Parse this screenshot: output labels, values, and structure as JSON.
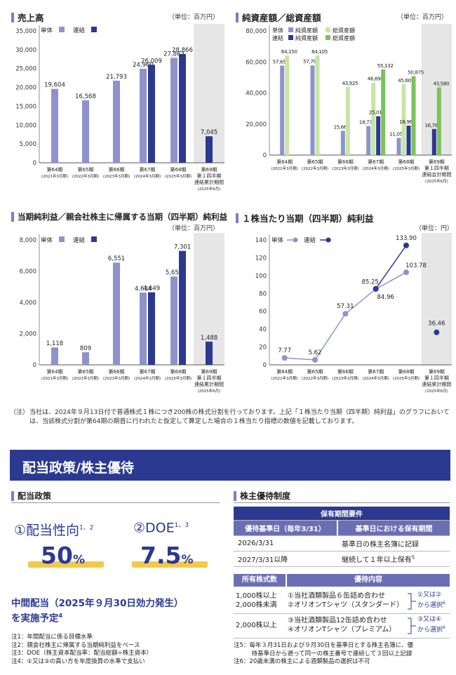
{
  "colors": {
    "single": "#8f93cc",
    "consol": "#2b3990",
    "light_green": "#c7e6a6",
    "green": "#7dc15b",
    "gray": "#e6e6e6",
    "navy": "#2b3990"
  },
  "period_labels": [
    {
      "l1": "第64期",
      "l2": "(2021年3月期)"
    },
    {
      "l1": "第65期",
      "l2": "(2022年3月期)"
    },
    {
      "l1": "第66期",
      "l2": "(2023年3月期)"
    },
    {
      "l1": "第67期",
      "l2": "(2024年3月期)"
    },
    {
      "l1": "第68期",
      "l2": "(2025年3月期)"
    }
  ],
  "period69_a": [
    "第69期",
    "第１四半期",
    "連結累計期間",
    "(2025年6月)"
  ],
  "period69_b": [
    "第69期",
    "第１四半期",
    "連結会計期間",
    "(2025年6月)"
  ],
  "chart_data": [
    {
      "type": "bar",
      "title": "売上高",
      "unit": "（単位：百万円）",
      "legend": [
        "単体",
        "連結"
      ],
      "yticks": [
        "35,000",
        "30,000",
        "25,000",
        "20,000",
        "15,000",
        "10,000",
        "5,000",
        "0"
      ],
      "ylim": [
        0,
        35000
      ],
      "series": [
        {
          "name": "単体",
          "values": [
            19604,
            16568,
            21793,
            24960,
            27863,
            null
          ],
          "labels": [
            "19,604",
            "16,568",
            "21,793",
            "24,960",
            "27,863",
            ""
          ]
        },
        {
          "name": "連結",
          "values": [
            null,
            null,
            null,
            26009,
            28866,
            7045
          ],
          "labels": [
            "",
            "",
            "",
            "26,009",
            "28,866",
            "7,045"
          ]
        }
      ]
    },
    {
      "type": "bar",
      "title": "純資産額／総資産額",
      "unit": "（単位：百万円）",
      "legend": [
        "単体",
        "純資産額",
        "総資産額",
        "連結",
        "純資産額",
        "総資産額"
      ],
      "yticks": [
        "80,000",
        "60,000",
        "40,000",
        "20,000",
        "0"
      ],
      "ylim": [
        0,
        80000
      ],
      "series": [
        {
          "name": "単体 純資産額",
          "values": [
            57659,
            57792,
            15669,
            18738,
            11050,
            null
          ],
          "labels": [
            "57,659",
            "57,792",
            "15,669",
            "18,738",
            "11,050",
            ""
          ]
        },
        {
          "name": "単体 総資産額",
          "values": [
            64150,
            64105,
            43925,
            46690,
            45609,
            null
          ],
          "labels": [
            "64,150",
            "64,105",
            "43,925",
            "46,690",
            "45,609",
            ""
          ]
        },
        {
          "name": "連結 純資産額",
          "values": [
            null,
            null,
            null,
            25013,
            18968,
            16783
          ],
          "labels": [
            "",
            "",
            "",
            "25,013",
            "18,968",
            "16,783"
          ]
        },
        {
          "name": "連結 総資産額",
          "values": [
            null,
            null,
            null,
            55132,
            50875,
            43580
          ],
          "labels": [
            "",
            "",
            "",
            "55,132",
            "50,875",
            "43,580"
          ]
        }
      ]
    },
    {
      "type": "bar",
      "title": "当期純利益／親会社株主に帰属する当期（四半期）純利益",
      "unit": "（単位：百万円）",
      "legend": [
        "単体",
        "連結"
      ],
      "yticks": [
        "8,000",
        "6,000",
        "4,000",
        "2,000",
        "0"
      ],
      "ylim": [
        0,
        8000
      ],
      "series": [
        {
          "name": "単体",
          "values": [
            1118,
            809,
            6551,
            4634,
            5658,
            null
          ],
          "labels": [
            "1,118",
            "809",
            "6,551",
            "4,634",
            "5,658",
            ""
          ]
        },
        {
          "name": "連結",
          "values": [
            null,
            null,
            null,
            4649,
            7301,
            1488
          ],
          "labels": [
            "",
            "",
            "",
            "4,649",
            "7,301",
            "1,488"
          ]
        }
      ]
    },
    {
      "type": "line",
      "title": "１株当たり当期（四半期）純利益",
      "unit": "（単位：円）",
      "legend": [
        "単体",
        "連結"
      ],
      "yticks": [
        "140",
        "120",
        "100",
        "80",
        "60",
        "40",
        "20",
        "0"
      ],
      "ylim": [
        0,
        140
      ],
      "series": [
        {
          "name": "単体",
          "values": [
            7.77,
            5.62,
            57.31,
            84.96,
            103.78,
            null
          ],
          "labels": [
            "7.77",
            "5.62",
            "57.31",
            "84.96",
            "103.78",
            ""
          ]
        },
        {
          "name": "連結",
          "values": [
            null,
            null,
            null,
            85.25,
            133.9,
            36.46
          ],
          "labels": [
            "",
            "",
            "",
            "85.25",
            "133.90",
            "36.46"
          ]
        }
      ]
    }
  ],
  "chart_note": {
    "mark": "（注）",
    "text": "当社は、2024年９月13日付で普通株式１株につき200株の株式分割を行っております。上記「１株当たり当期（四半期）純利益」のグラフにおいては、当該株式分割が第64期の期首に行われたと仮定して算定した場合の１株当たり指標の数値を記載しております。"
  },
  "banner": "配当政策/株主優待",
  "dividend": {
    "heading": "配当政策",
    "p1_label": "①配当性向",
    "p1_sup": "1、2",
    "p1_value": "50",
    "p1_unit": "%",
    "p2_label": "②DOE",
    "p2_sup": "1、3",
    "p2_value": "7.5",
    "p2_unit": "%",
    "interim_line1": "中間配当（2025年９月30日効力発生）",
    "interim_line2": "を実施予定",
    "interim_sup": "4",
    "notes": [
      "注1：年間配当に係る目標水準",
      "注2：親会社株主に帰属する当期純利益をベース",
      "注3：DOE（株主資本配当率：配当総額÷株主資本）",
      "注4：①又は②の高い方を年度換算の水準で支払い"
    ]
  },
  "benefits": {
    "heading": "株主優待制度",
    "req_title": "保有期間要件",
    "col1": "優待基準日（毎年3/31）",
    "col2": "基準日における保有期間",
    "rows": [
      {
        "date": "2026/3/31",
        "cond": "基準日の株主名簿に記録"
      },
      {
        "date": "2027/3/31以降",
        "cond": "継続して１年以上保有",
        "sup": "5"
      }
    ],
    "shares_head": "所有株式数",
    "content_head": "優待内容",
    "tier1_shares": [
      "1,000株以上",
      "2,000株未満"
    ],
    "tier1_items": [
      "①当社酒類製品６缶詰め合わせ",
      "②オリオンTシャツ（スタンダード）"
    ],
    "tier1_choice": [
      "①又は②",
      "から選択"
    ],
    "tier2_shares": "2,000株以上",
    "tier2_items": [
      "③当社酒類製品12缶詰め合わせ",
      "④オリオンTシャツ（プレミアム）"
    ],
    "tier2_choice": [
      "③又は④",
      "から選択"
    ],
    "choice_sup": "6",
    "notes": [
      "注5：毎年３月31日および９月30日を基準日とする株主名簿に、優",
      "　　　待基準日から遡って同一の株主番号で連続して３回以上記録",
      "注6：20歳未満の株主による酒類製品の選択は不可"
    ]
  }
}
